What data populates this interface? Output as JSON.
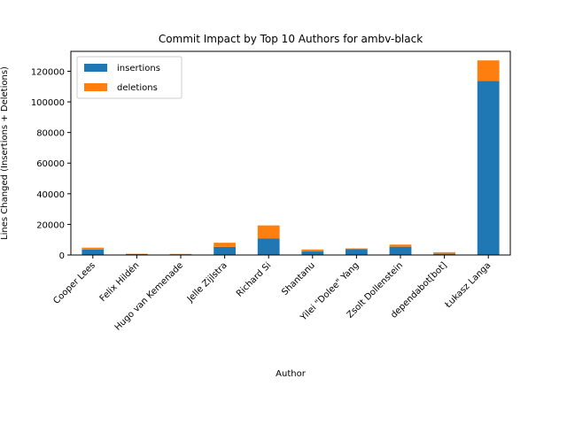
{
  "chart_data": {
    "type": "bar",
    "stacked": true,
    "title": "Commit Impact by Top 10 Authors for ambv-black",
    "xlabel": "Author",
    "ylabel": "Lines Changed (Insertions + Deletions)",
    "categories": [
      "Cooper Lees",
      "Felix Hildén",
      "Hugo van Kemenade",
      "Jelle Zijlstra",
      "Richard Si",
      "Shantanu",
      "Yilei \"Dolee\" Yang",
      "Zsolt Dollenstein",
      "dependabot[bot]",
      "Łukasz Langa"
    ],
    "series": [
      {
        "name": "insertions",
        "color": "#1f77b4",
        "values": [
          3500,
          600,
          500,
          5300,
          10700,
          2300,
          3800,
          5400,
          800,
          113600
        ]
      },
      {
        "name": "deletions",
        "color": "#ff7f0e",
        "values": [
          1300,
          200,
          200,
          2700,
          8600,
          1300,
          500,
          1400,
          1000,
          13500
        ]
      }
    ],
    "ylim": [
      0,
      133000
    ],
    "yticks": [
      0,
      20000,
      40000,
      60000,
      80000,
      100000,
      120000
    ],
    "ytick_labels": [
      "0",
      "20000",
      "40000",
      "60000",
      "80000",
      "100000",
      "120000"
    ],
    "legend_position": "upper left",
    "grid": false
  }
}
